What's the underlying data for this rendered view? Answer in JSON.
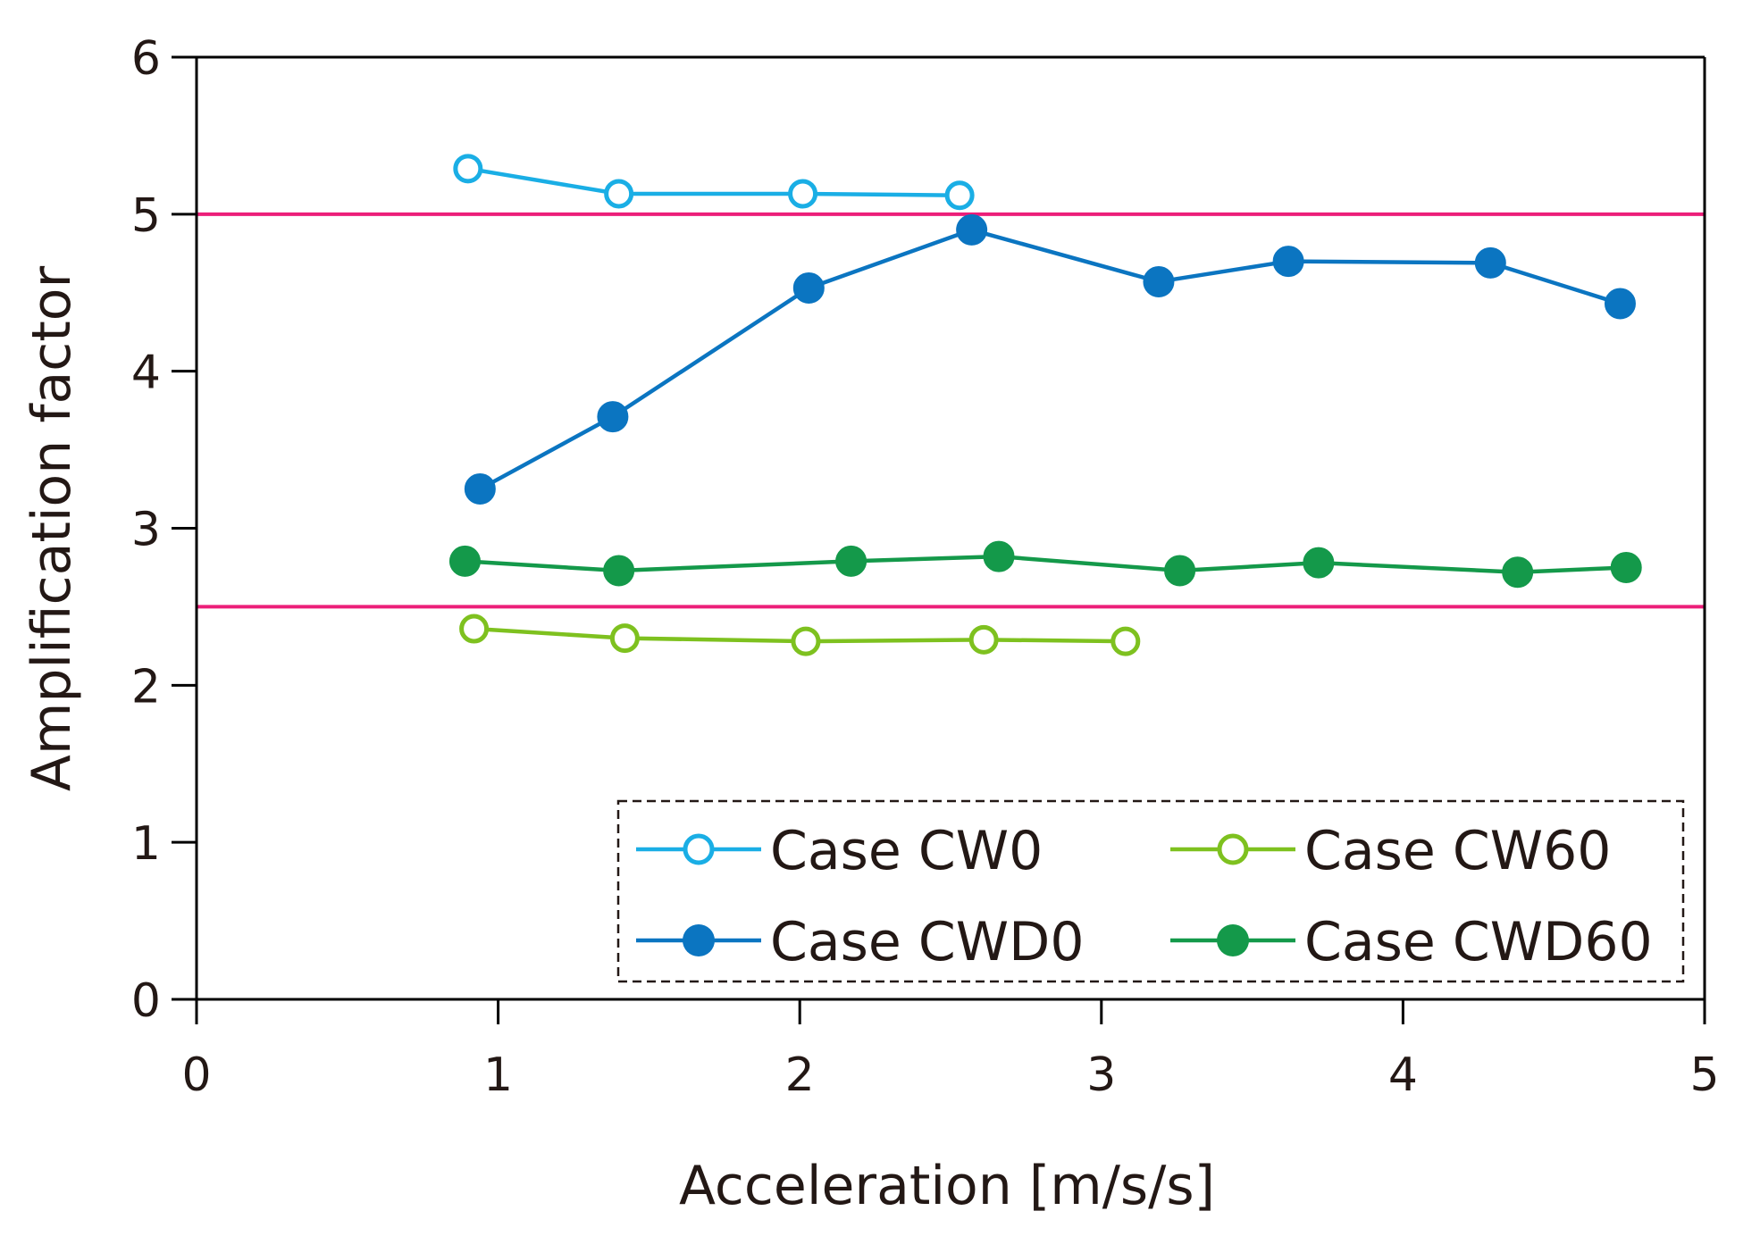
{
  "chart_data": {
    "type": "line",
    "title": "",
    "xlabel": "Acceleration [m/s/s]",
    "ylabel": "Amplification factor",
    "xlim": [
      0,
      5
    ],
    "ylim": [
      0,
      6
    ],
    "xticks": [
      "0",
      "1",
      "2",
      "3",
      "4",
      "5"
    ],
    "yticks": [
      "0",
      "1",
      "2",
      "3",
      "4",
      "5",
      "6"
    ],
    "grid": false,
    "legend_position": "bottom-right",
    "reference_lines": [
      {
        "y": 5.0,
        "color": "#ec1e79"
      },
      {
        "y": 2.5,
        "color": "#ec1e79"
      }
    ],
    "series": [
      {
        "name": "Case CW0",
        "color": "#1aaee5",
        "marker": "open",
        "x": [
          0.9,
          1.4,
          2.01,
          2.53
        ],
        "y": [
          5.29,
          5.13,
          5.13,
          5.12
        ]
      },
      {
        "name": "Case CWD0",
        "color": "#0b75c1",
        "marker": "filled",
        "x": [
          0.94,
          1.38,
          2.03,
          2.57,
          3.19,
          3.62,
          4.29,
          4.72
        ],
        "y": [
          3.25,
          3.71,
          4.53,
          4.9,
          4.57,
          4.7,
          4.69,
          4.43
        ]
      },
      {
        "name": "Case CW60",
        "color": "#7ec11f",
        "marker": "open",
        "x": [
          0.92,
          1.42,
          2.02,
          2.61,
          3.08
        ],
        "y": [
          2.36,
          2.3,
          2.28,
          2.29,
          2.28
        ]
      },
      {
        "name": "Case CWD60",
        "color": "#14994a",
        "marker": "filled",
        "x": [
          0.89,
          1.4,
          2.17,
          2.66,
          3.26,
          3.72,
          4.38,
          4.74
        ],
        "y": [
          2.79,
          2.73,
          2.79,
          2.82,
          2.73,
          2.78,
          2.72,
          2.75
        ]
      }
    ]
  }
}
